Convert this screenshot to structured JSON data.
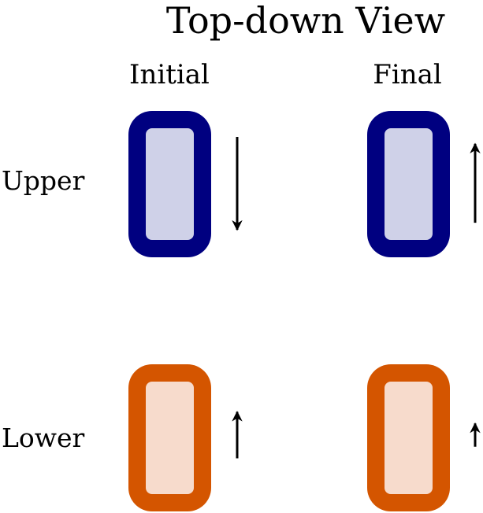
{
  "title": "Top-down View",
  "columns": [
    "Initial",
    "Final"
  ],
  "rows": [
    "Upper",
    "Lower"
  ],
  "colors": {
    "upper_border": "#000080",
    "upper_fill": "#cfd1e8",
    "lower_border": "#d45500",
    "lower_fill": "#f7dbcc",
    "arrow": "#000000"
  },
  "arrows": [
    {
      "row": "Upper",
      "column": "Initial",
      "direction": "down",
      "magnitude": 1.0
    },
    {
      "row": "Upper",
      "column": "Final",
      "direction": "up",
      "magnitude": 0.85
    },
    {
      "row": "Lower",
      "column": "Initial",
      "direction": "up",
      "magnitude": 0.5
    },
    {
      "row": "Lower",
      "column": "Final",
      "direction": "up",
      "magnitude": 0.25
    }
  ]
}
